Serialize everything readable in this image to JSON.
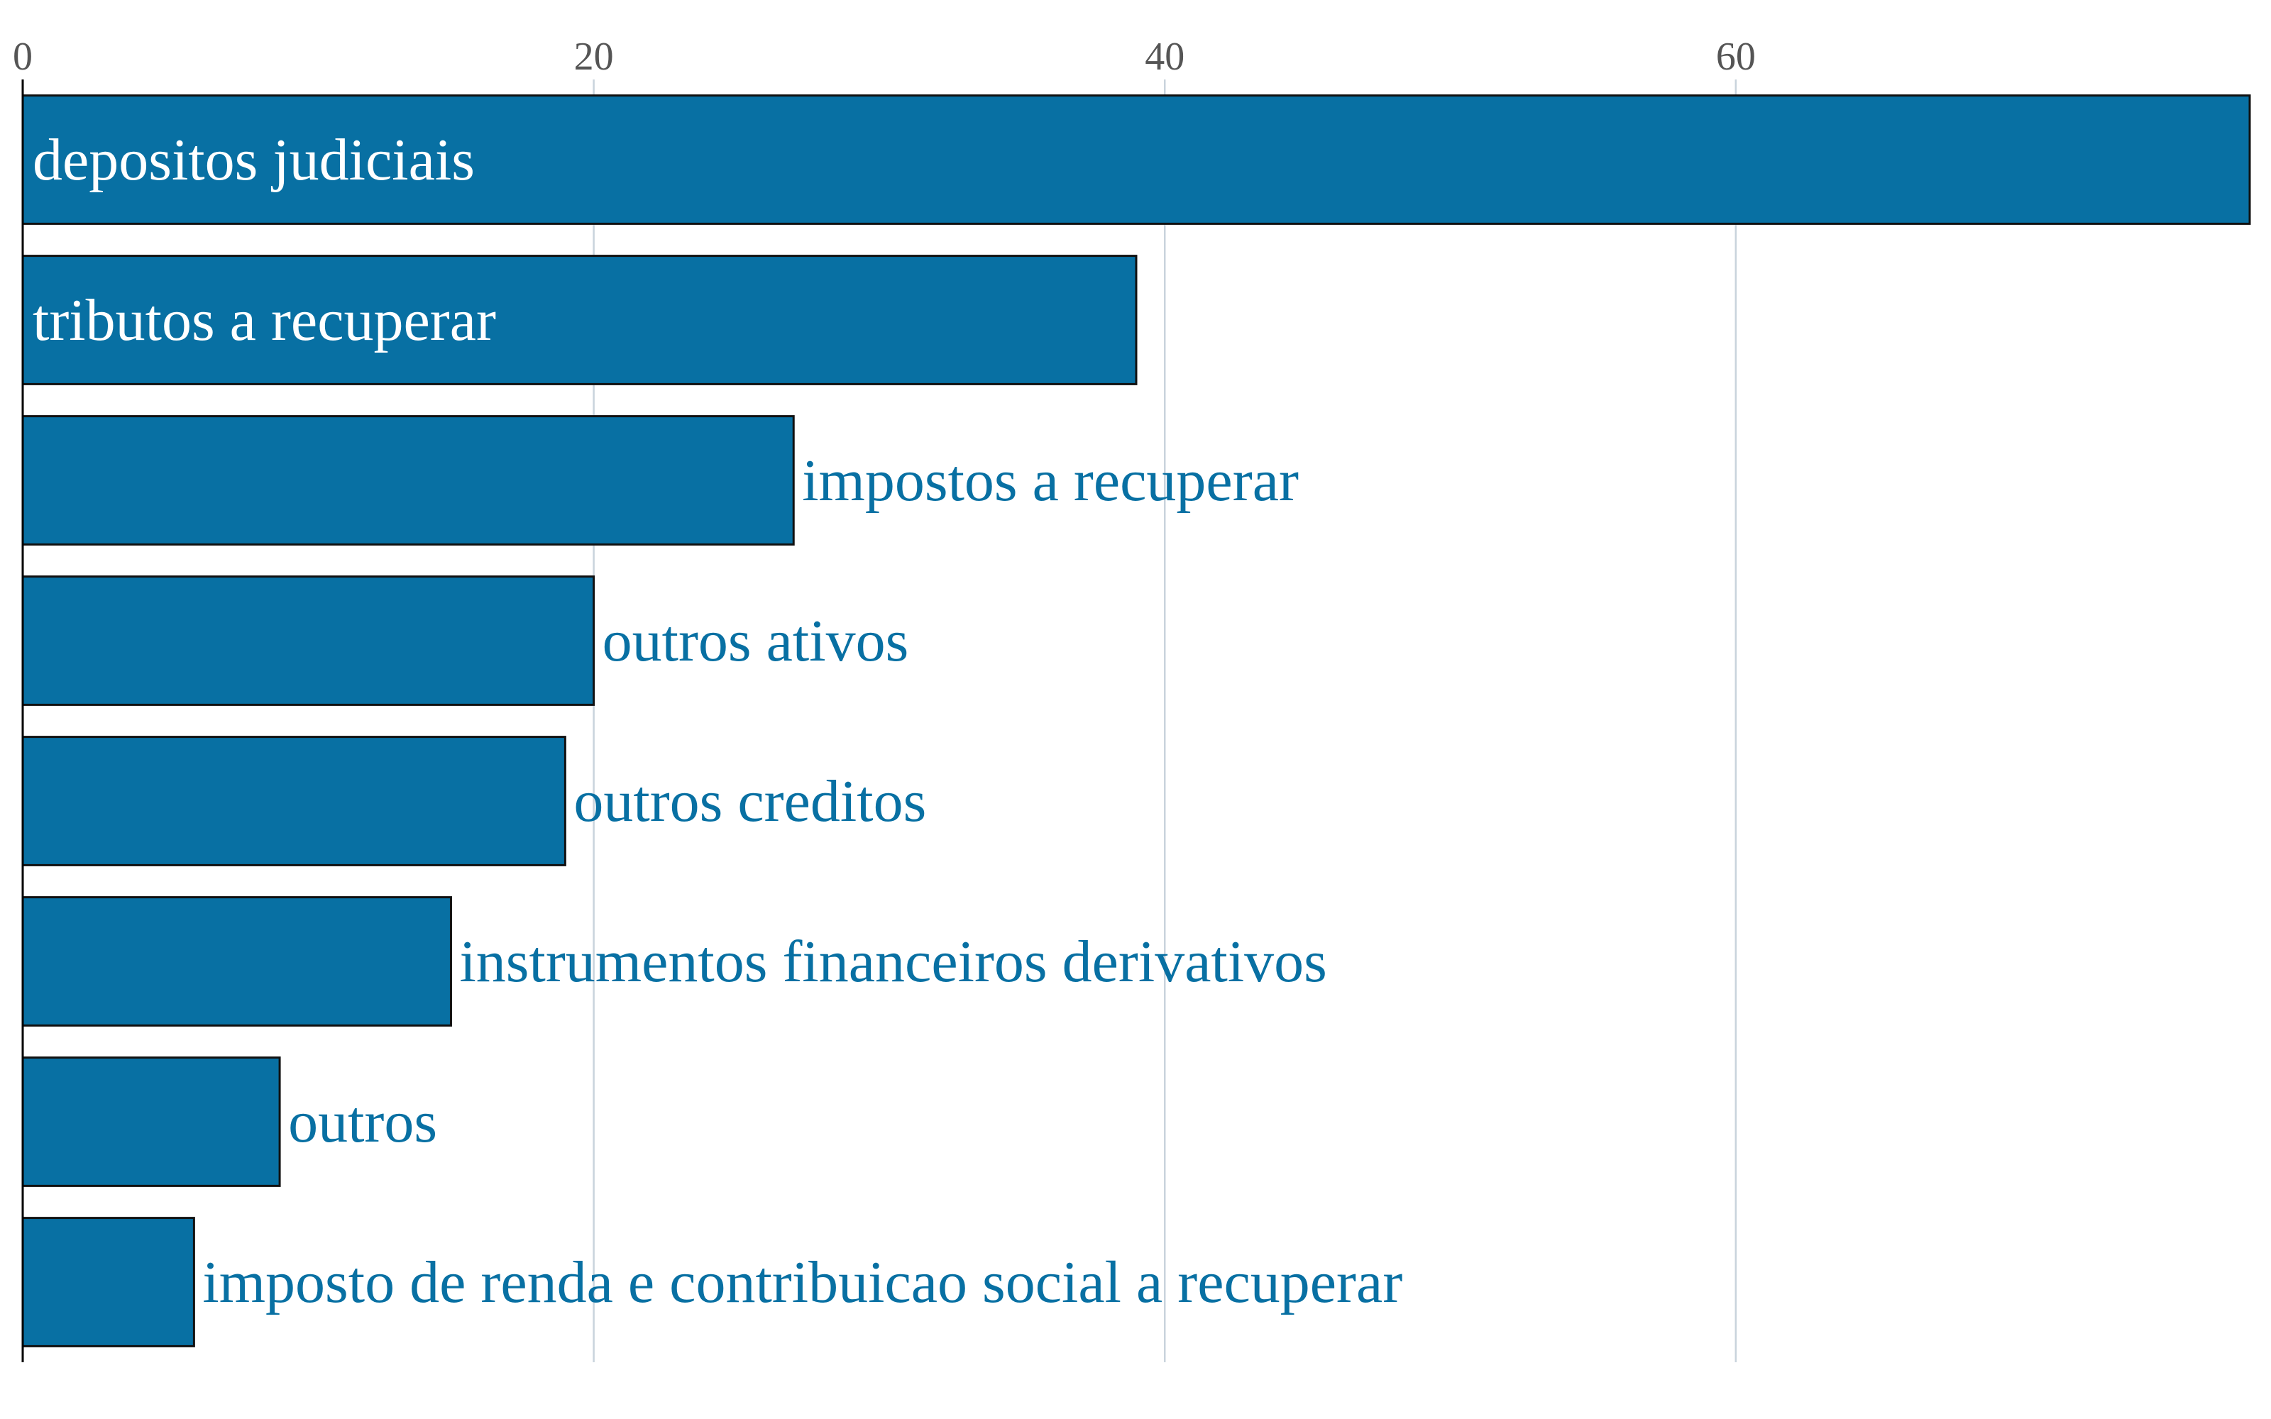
{
  "chart_data": {
    "type": "bar",
    "orientation": "horizontal",
    "categories": [
      "depositos judiciais",
      "tributos a recuperar",
      "impostos a recuperar",
      "outros ativos",
      "outros creditos",
      "instrumentos financeiros derivativos",
      "outros",
      "imposto de renda e contribuicao social a recuperar"
    ],
    "values": [
      78,
      39,
      27,
      20,
      19,
      15,
      9,
      6
    ],
    "xlim": [
      0,
      78
    ],
    "xticks": [
      0,
      20,
      40,
      60
    ],
    "x_axis_position": "top",
    "grid": true,
    "title": "",
    "xlabel": "",
    "ylabel": "",
    "legend": "none",
    "colors": {
      "bar": "#0870a3",
      "label_inside": "#ffffff",
      "label_outside": "#0870a3"
    }
  }
}
